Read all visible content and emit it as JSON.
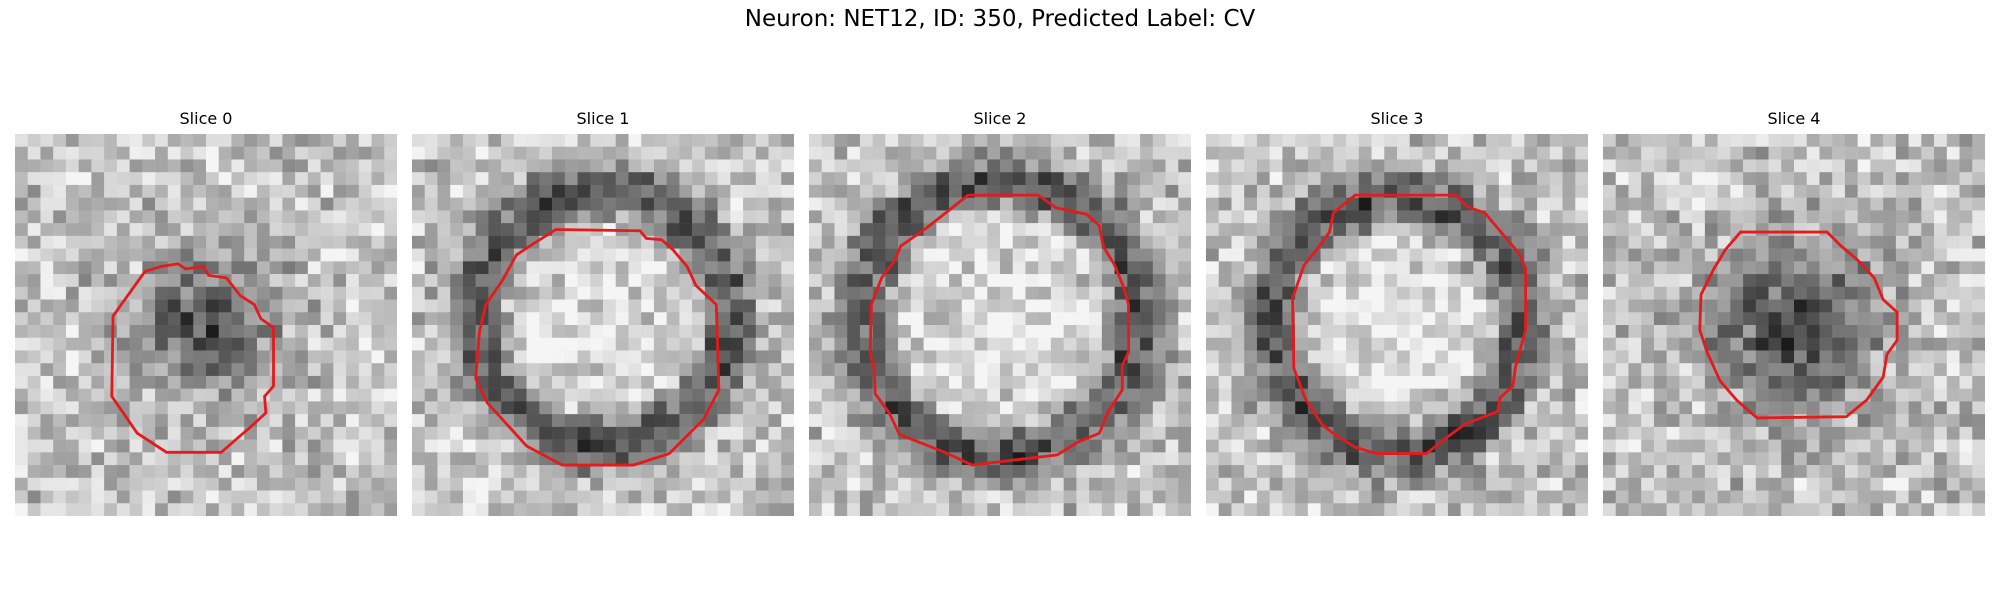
{
  "figure": {
    "title": "Neuron: NET12, ID: 350, Predicted Label: CV",
    "outline_color": "#e41a1c",
    "colormap": "gray"
  },
  "panels": [
    {
      "title": "Slice 0",
      "label": "dark centered blob, textured background",
      "center": [
        0.5,
        0.5
      ],
      "dark_radius": 0.2,
      "bright_inside": false,
      "ring": false
    },
    {
      "title": "Slice 1",
      "label": "dark ring with lighter interior",
      "center": [
        0.5,
        0.48
      ],
      "dark_radius": 0.33,
      "bright_inside": true,
      "ring": true
    },
    {
      "title": "Slice 2",
      "label": "bright interior surrounded by dark rim",
      "center": [
        0.5,
        0.48
      ],
      "dark_radius": 0.36,
      "bright_inside": true,
      "ring": true
    },
    {
      "title": "Slice 3",
      "label": "bright interior, dark top rim",
      "center": [
        0.5,
        0.5
      ],
      "dark_radius": 0.33,
      "bright_inside": true,
      "ring": true
    },
    {
      "title": "Slice 4",
      "label": "dark compact blob",
      "center": [
        0.5,
        0.5
      ],
      "dark_radius": 0.25,
      "bright_inside": false,
      "ring": false
    }
  ]
}
